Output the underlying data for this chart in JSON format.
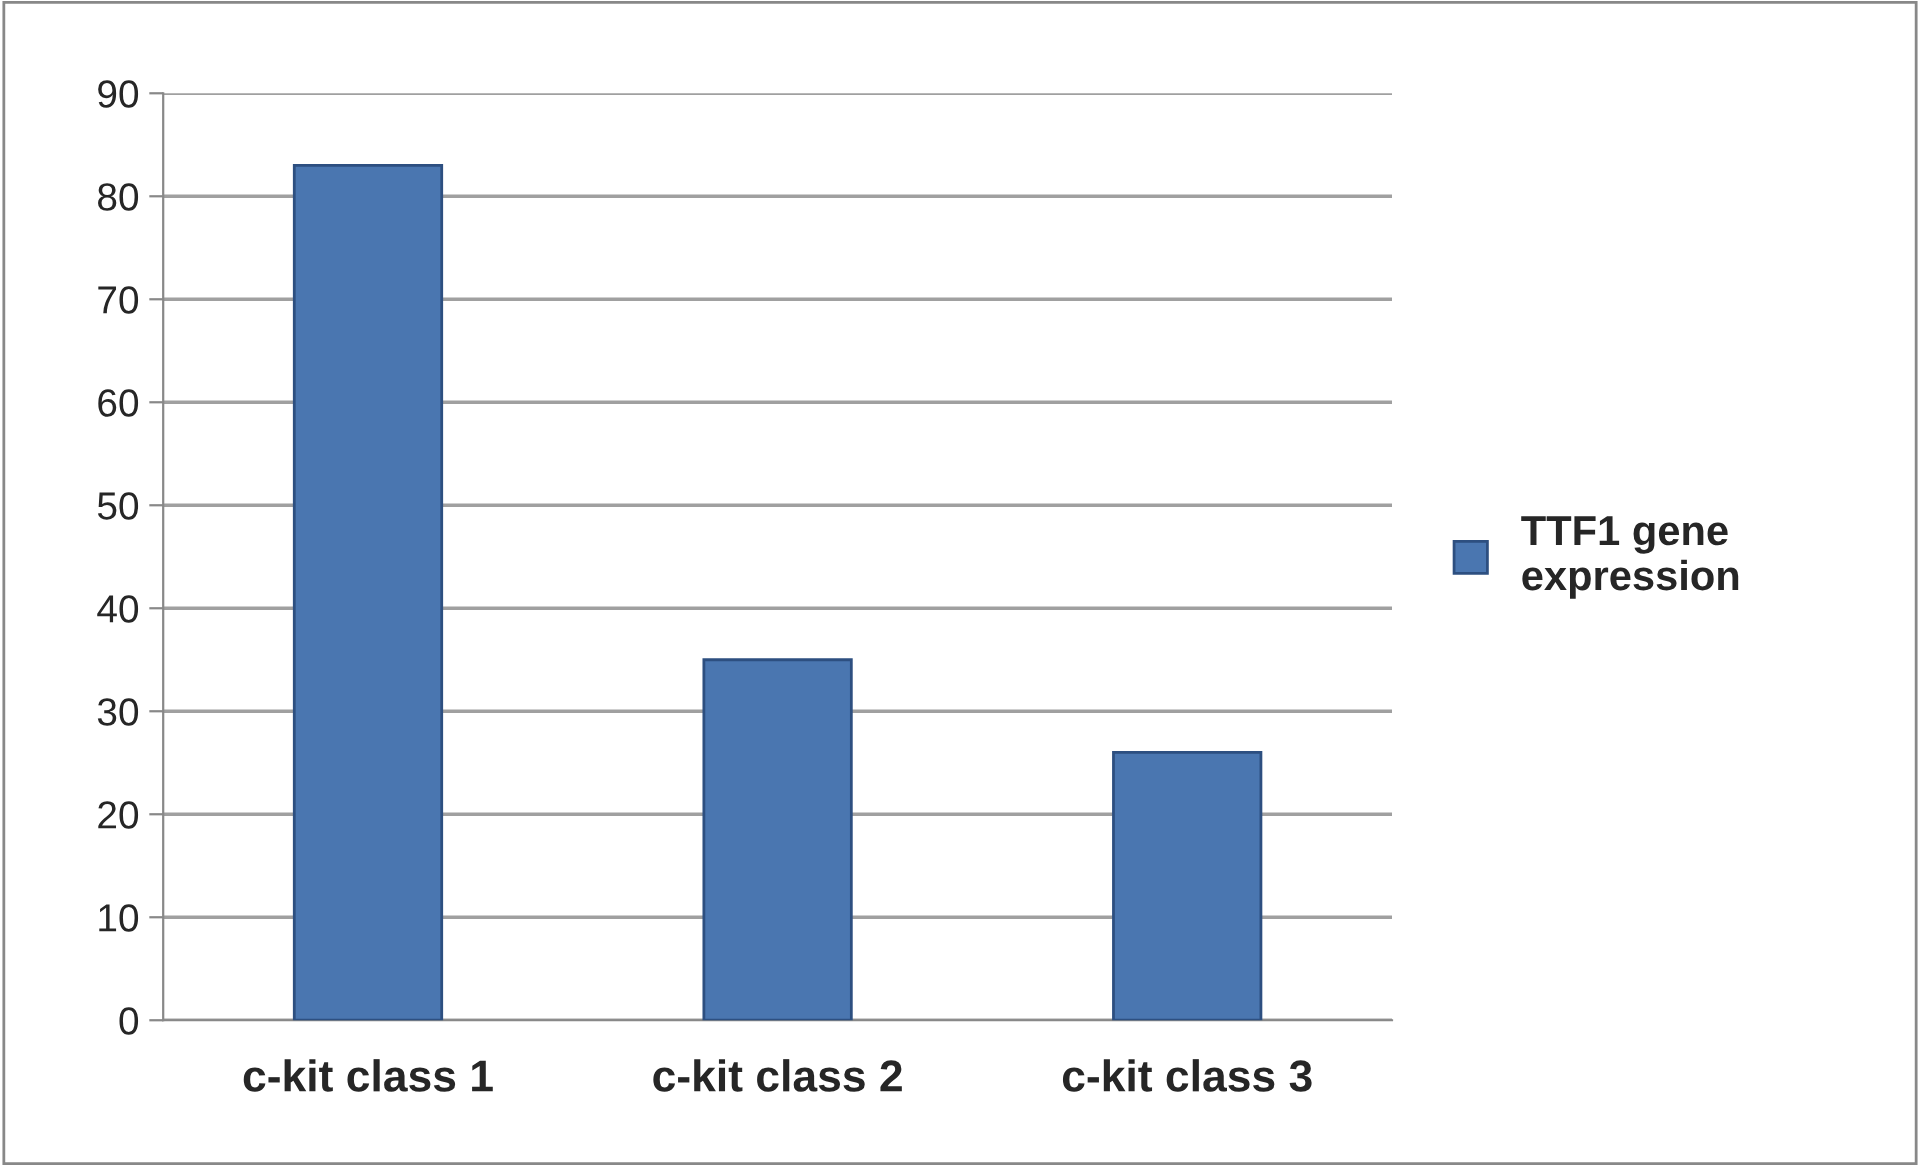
{
  "chart_data": {
    "type": "bar",
    "categories": [
      "c-kit class 1",
      "c-kit class 2",
      "c-kit class 3"
    ],
    "series": [
      {
        "name": "TTF1 gene expression",
        "color": "#4a76b0",
        "values": [
          83,
          35,
          26
        ]
      }
    ],
    "ylim": [
      0,
      90
    ],
    "yticks": [
      0,
      10,
      20,
      30,
      40,
      50,
      60,
      70,
      80,
      90
    ],
    "grid": "y",
    "legend": "right"
  }
}
